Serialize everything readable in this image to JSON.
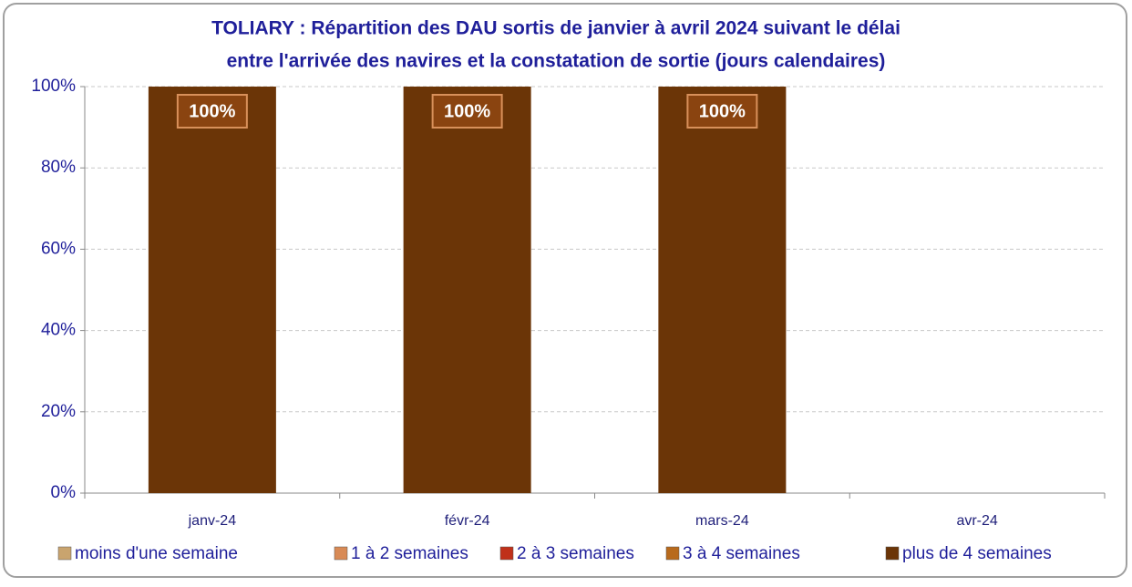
{
  "chart_data": {
    "type": "bar",
    "stacked": true,
    "title": [
      "TOLIARY : Répartition des DAU sortis de janvier à avril 2024 suivant le délai",
      "entre l'arrivée des navires et la constatation de sortie (jours calendaires)"
    ],
    "categories": [
      "janv-24",
      "févr-24",
      "mars-24",
      "avr-24"
    ],
    "series": [
      {
        "name": "moins d'une semaine",
        "color": "#c9a46e",
        "values": [
          0,
          0,
          0,
          null
        ]
      },
      {
        "name": "1 à 2 semaines",
        "color": "#d88a55",
        "values": [
          0,
          0,
          0,
          null
        ]
      },
      {
        "name": "2 à 3 semaines",
        "color": "#c0311a",
        "values": [
          0,
          0,
          0,
          null
        ]
      },
      {
        "name": "3 à 4 semaines",
        "color": "#b86a1c",
        "values": [
          0,
          0,
          0,
          null
        ]
      },
      {
        "name": "plus de 4 semaines",
        "color": "#6b3507",
        "values": [
          100,
          100,
          100,
          null
        ],
        "value_labels": [
          "100%",
          "100%",
          "100%",
          null
        ]
      }
    ],
    "ylim": [
      0,
      100
    ],
    "yticks": [
      {
        "value": 0,
        "label": "0%"
      },
      {
        "value": 20,
        "label": "20%"
      },
      {
        "value": 40,
        "label": "40%"
      },
      {
        "value": 60,
        "label": "60%"
      },
      {
        "value": 80,
        "label": "80%"
      },
      {
        "value": 100,
        "label": "100%"
      }
    ],
    "grid": true,
    "legend": "bottom"
  }
}
